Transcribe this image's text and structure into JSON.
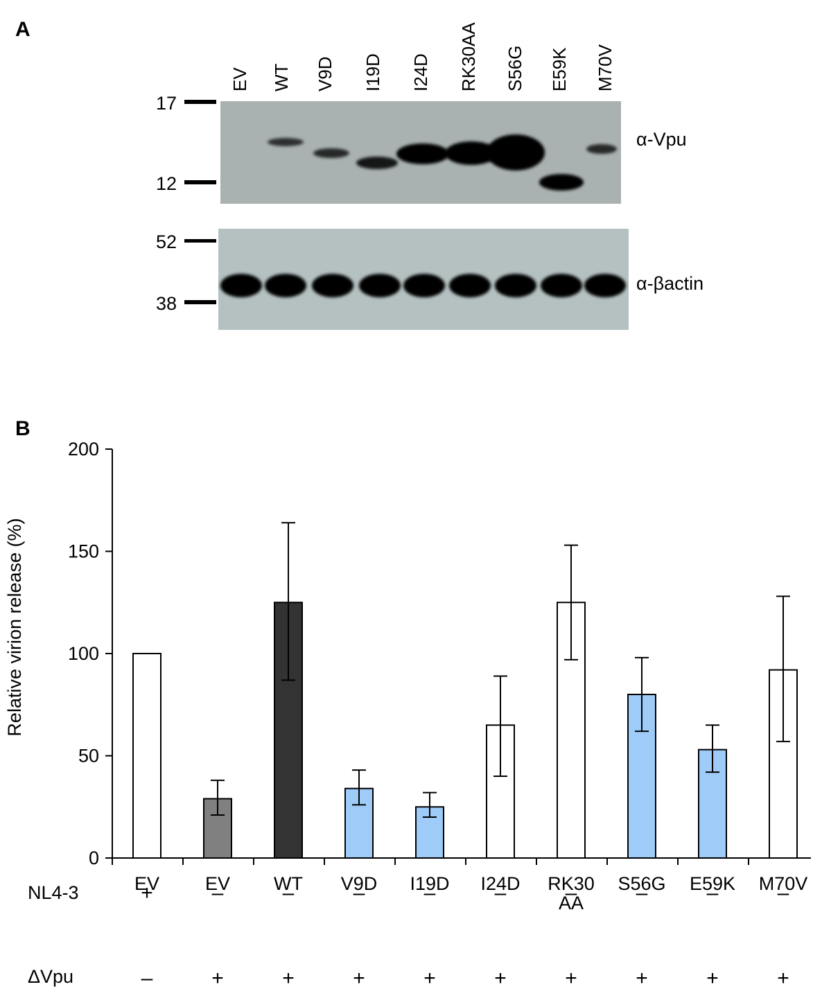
{
  "panel_a": {
    "label": "A",
    "lanes": [
      "EV",
      "WT",
      "V9D",
      "I19D",
      "I24D",
      "RK30AA",
      "S56G",
      "E59K",
      "M70V"
    ],
    "blot_vpu": {
      "antibody": "α-Vpu",
      "markers": [
        "17",
        "12"
      ],
      "band_intensity": [
        0,
        0.55,
        0.6,
        0.75,
        0.95,
        1.0,
        1.0,
        0.95,
        0.6
      ],
      "background": "#a9b1b1"
    },
    "blot_actin": {
      "antibody": "α-βactin",
      "markers": [
        "52",
        "38"
      ],
      "band_intensity": [
        1,
        1,
        1,
        1,
        1,
        1,
        1,
        1,
        1
      ],
      "background": "#b5c1c1"
    }
  },
  "panel_b": {
    "label": "B",
    "row_labels": {
      "nl43": "NL4-3",
      "dvpu": "ΔVpu"
    },
    "nl43_signs": [
      "+",
      "–",
      "–",
      "–",
      "–",
      "–",
      "–",
      "–",
      "–",
      "–"
    ],
    "dvpu_signs": [
      "–",
      "+",
      "+",
      "+",
      "+",
      "+",
      "+",
      "+",
      "+",
      "+"
    ]
  },
  "chart_data": {
    "type": "bar",
    "categories": [
      "EV",
      "EV",
      "WT",
      "V9D",
      "I19D",
      "I24D",
      "RK30 AA",
      "S56G",
      "E59K",
      "M70V"
    ],
    "category_lines": [
      [
        "EV"
      ],
      [
        "EV"
      ],
      [
        "WT"
      ],
      [
        "V9D"
      ],
      [
        "I19D"
      ],
      [
        "I24D"
      ],
      [
        "RK30",
        "AA"
      ],
      [
        "S56G"
      ],
      [
        "E59K"
      ],
      [
        "M70V"
      ]
    ],
    "values": [
      100,
      29,
      125,
      34,
      25,
      65,
      125,
      80,
      53,
      92
    ],
    "error_low": [
      null,
      21,
      87,
      26,
      20,
      40,
      97,
      62,
      42,
      57
    ],
    "error_high": [
      null,
      38,
      164,
      43,
      32,
      89,
      153,
      98,
      65,
      128
    ],
    "bar_colors": [
      "#ffffff",
      "#808080",
      "#333333",
      "#9ecbf7",
      "#9ecbf7",
      "#ffffff",
      "#ffffff",
      "#9ecbf7",
      "#9ecbf7",
      "#ffffff"
    ],
    "ylabel": "Relative virion release (%)",
    "ylim": [
      0,
      200
    ],
    "yticks": [
      0,
      50,
      100,
      150,
      200
    ],
    "grid": false
  }
}
